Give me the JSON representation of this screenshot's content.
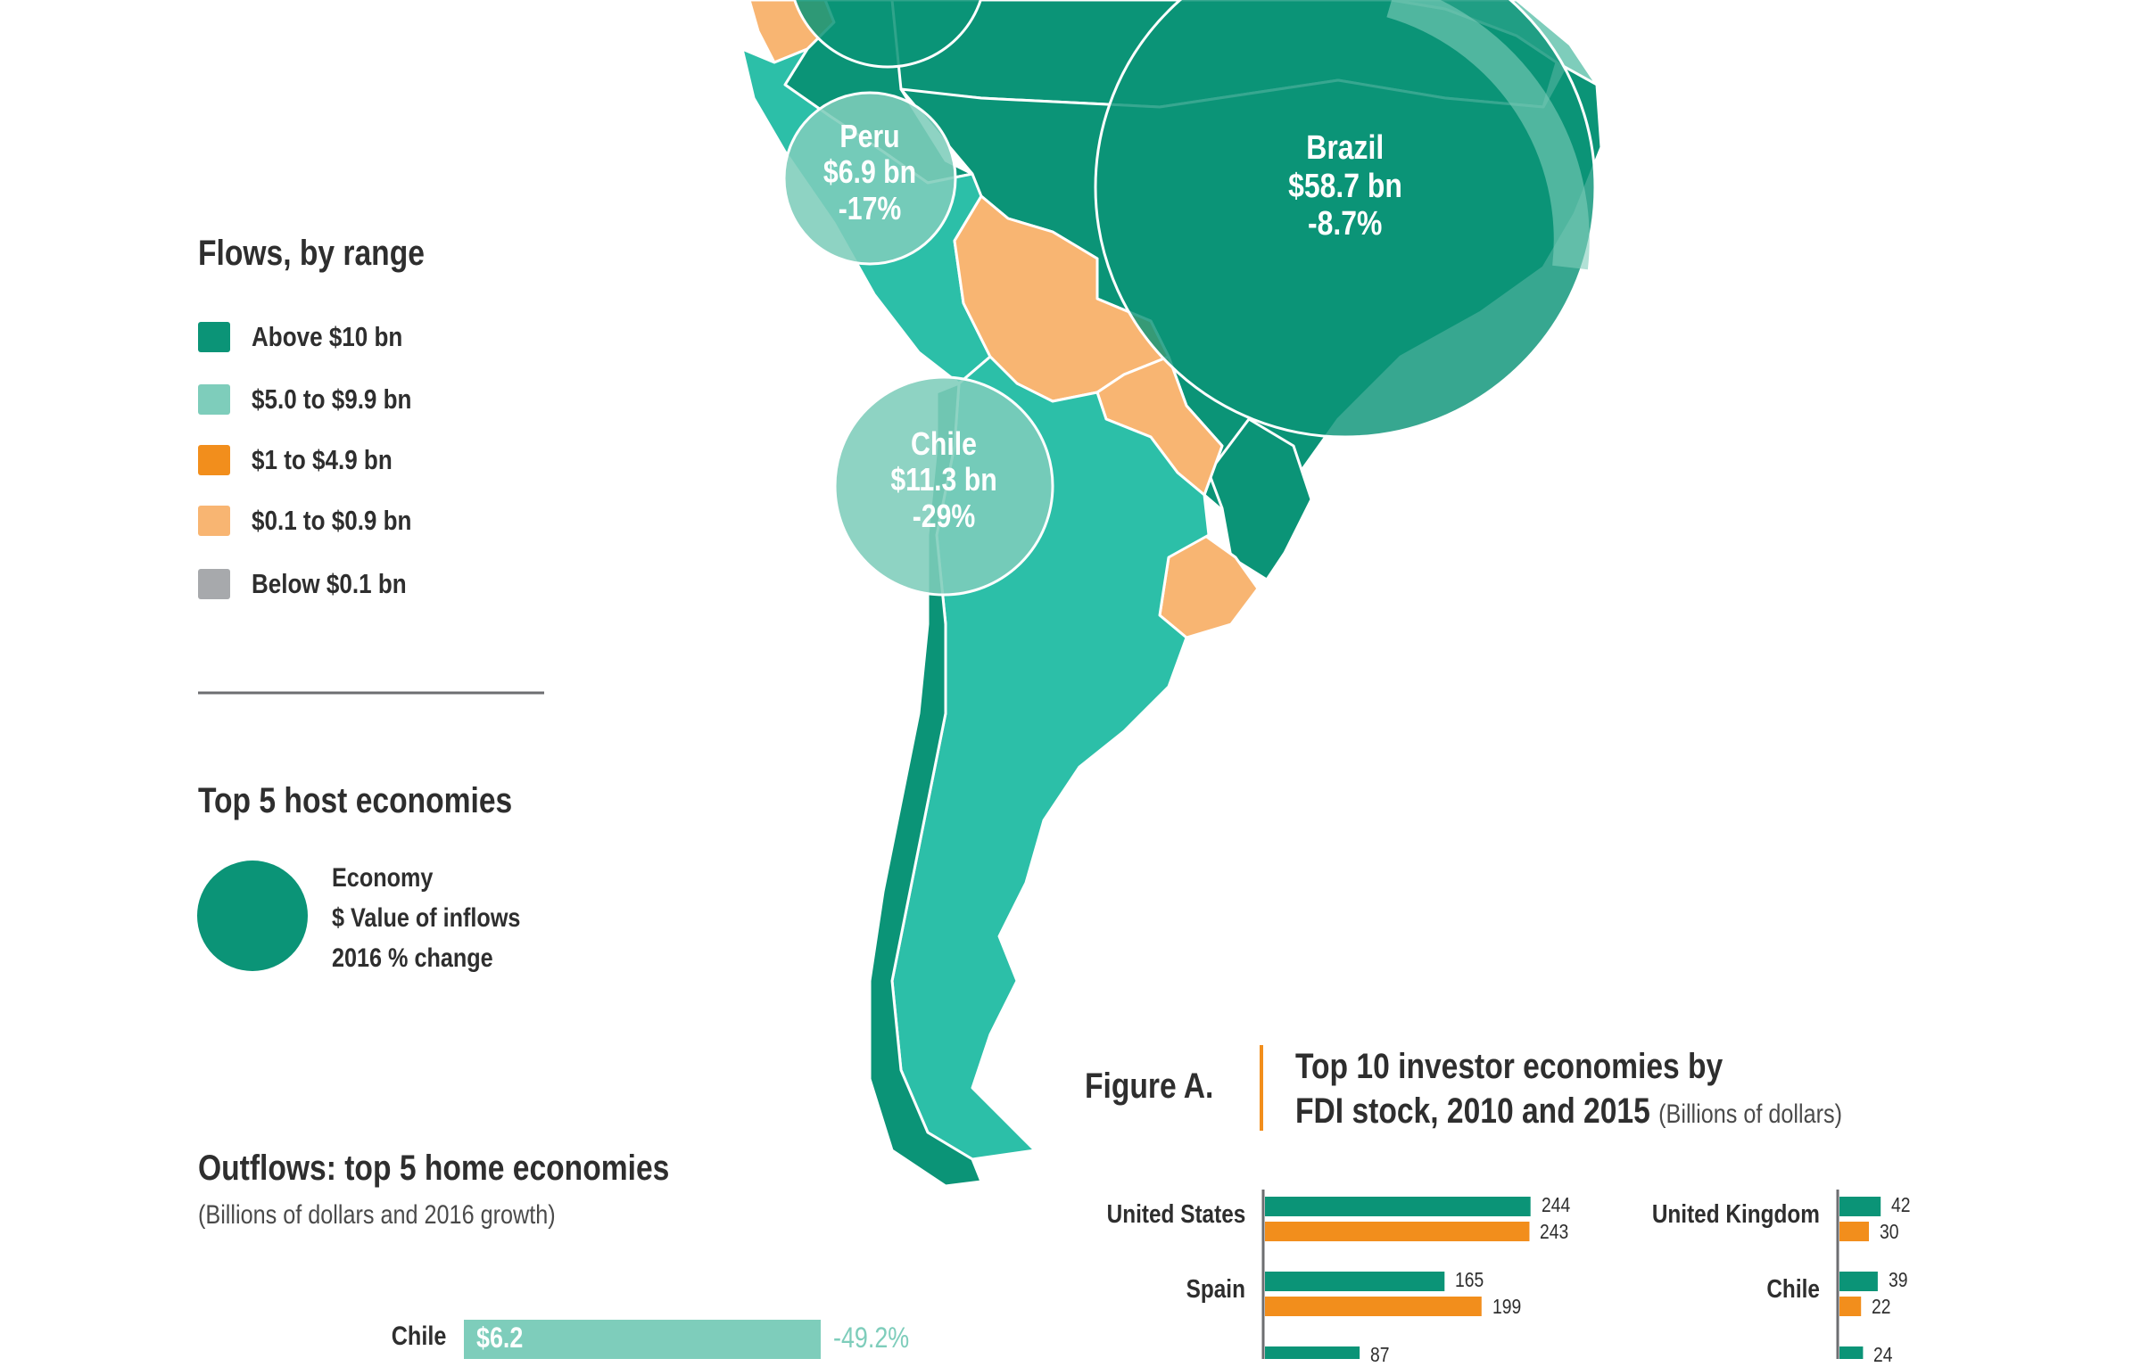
{
  "colors": {
    "dark_teal": "#0b9477",
    "mid_teal": "#2cbfa8",
    "light_teal": "#7ecdbb",
    "orange": "#f28e1c",
    "light_orange": "#f8b572",
    "grey": "#a7a9ac",
    "text": "#2e2e2e"
  },
  "legend": {
    "title": "Flows, by range",
    "items": [
      {
        "label": "Above $10 bn",
        "color": "#0b9477"
      },
      {
        "label": "$5.0 to $9.9 bn",
        "color": "#7ecdbb"
      },
      {
        "label": "$1 to $4.9 bn",
        "color": "#f28e1c"
      },
      {
        "label": "$0.1 to $0.9 bn",
        "color": "#f8b572"
      },
      {
        "label": "Below $0.1 bn",
        "color": "#a7a9ac"
      }
    ]
  },
  "host_legend": {
    "title": "Top 5 host economies",
    "lines": [
      "Economy",
      "$ Value of inflows",
      "2016 % change"
    ]
  },
  "host_bubbles": [
    {
      "name": "Brazil",
      "value": "$58.7 bn",
      "change": "-8.7%"
    },
    {
      "name": "Peru",
      "value": "$6.9 bn",
      "change": "-17%"
    },
    {
      "name": "Chile",
      "value": "$11.3 bn",
      "change": "-29%"
    }
  ],
  "outflows": {
    "title": "Outflows: top 5 home economies",
    "subtitle": "(Billions of dollars and 2016 growth)",
    "rows": [
      {
        "label": "Chile",
        "value": 6.2,
        "value_text": "$6.2",
        "growth": "-49.2%"
      }
    ]
  },
  "figure_a": {
    "label": "Figure A.",
    "title_line1": "Top 10 investor economies by",
    "title_line2": "FDI stock, 2010 and 2015",
    "unit": "(Billions of dollars)"
  },
  "chart_data": {
    "type": "bar",
    "title": "Top 10 investor economies by FDI stock, 2010 and 2015",
    "unit": "(Billions of dollars)",
    "series": [
      {
        "name": "2015",
        "color": "#0b9477"
      },
      {
        "name": "2010",
        "color": "#f28e1c"
      }
    ],
    "left_column": [
      {
        "label": "United States",
        "v2015": 244,
        "v2010": 243
      },
      {
        "label": "Spain",
        "v2015": 165,
        "v2010": 199
      },
      {
        "label": "",
        "v2015": 87,
        "v2010": null,
        "partial": true
      }
    ],
    "right_column": [
      {
        "label": "United Kingdom",
        "v2015": 42,
        "v2010": 30
      },
      {
        "label": "Chile",
        "v2015": 39,
        "v2010": 22
      },
      {
        "label": "",
        "v2015": 24,
        "v2010": null,
        "partial": true
      }
    ]
  }
}
